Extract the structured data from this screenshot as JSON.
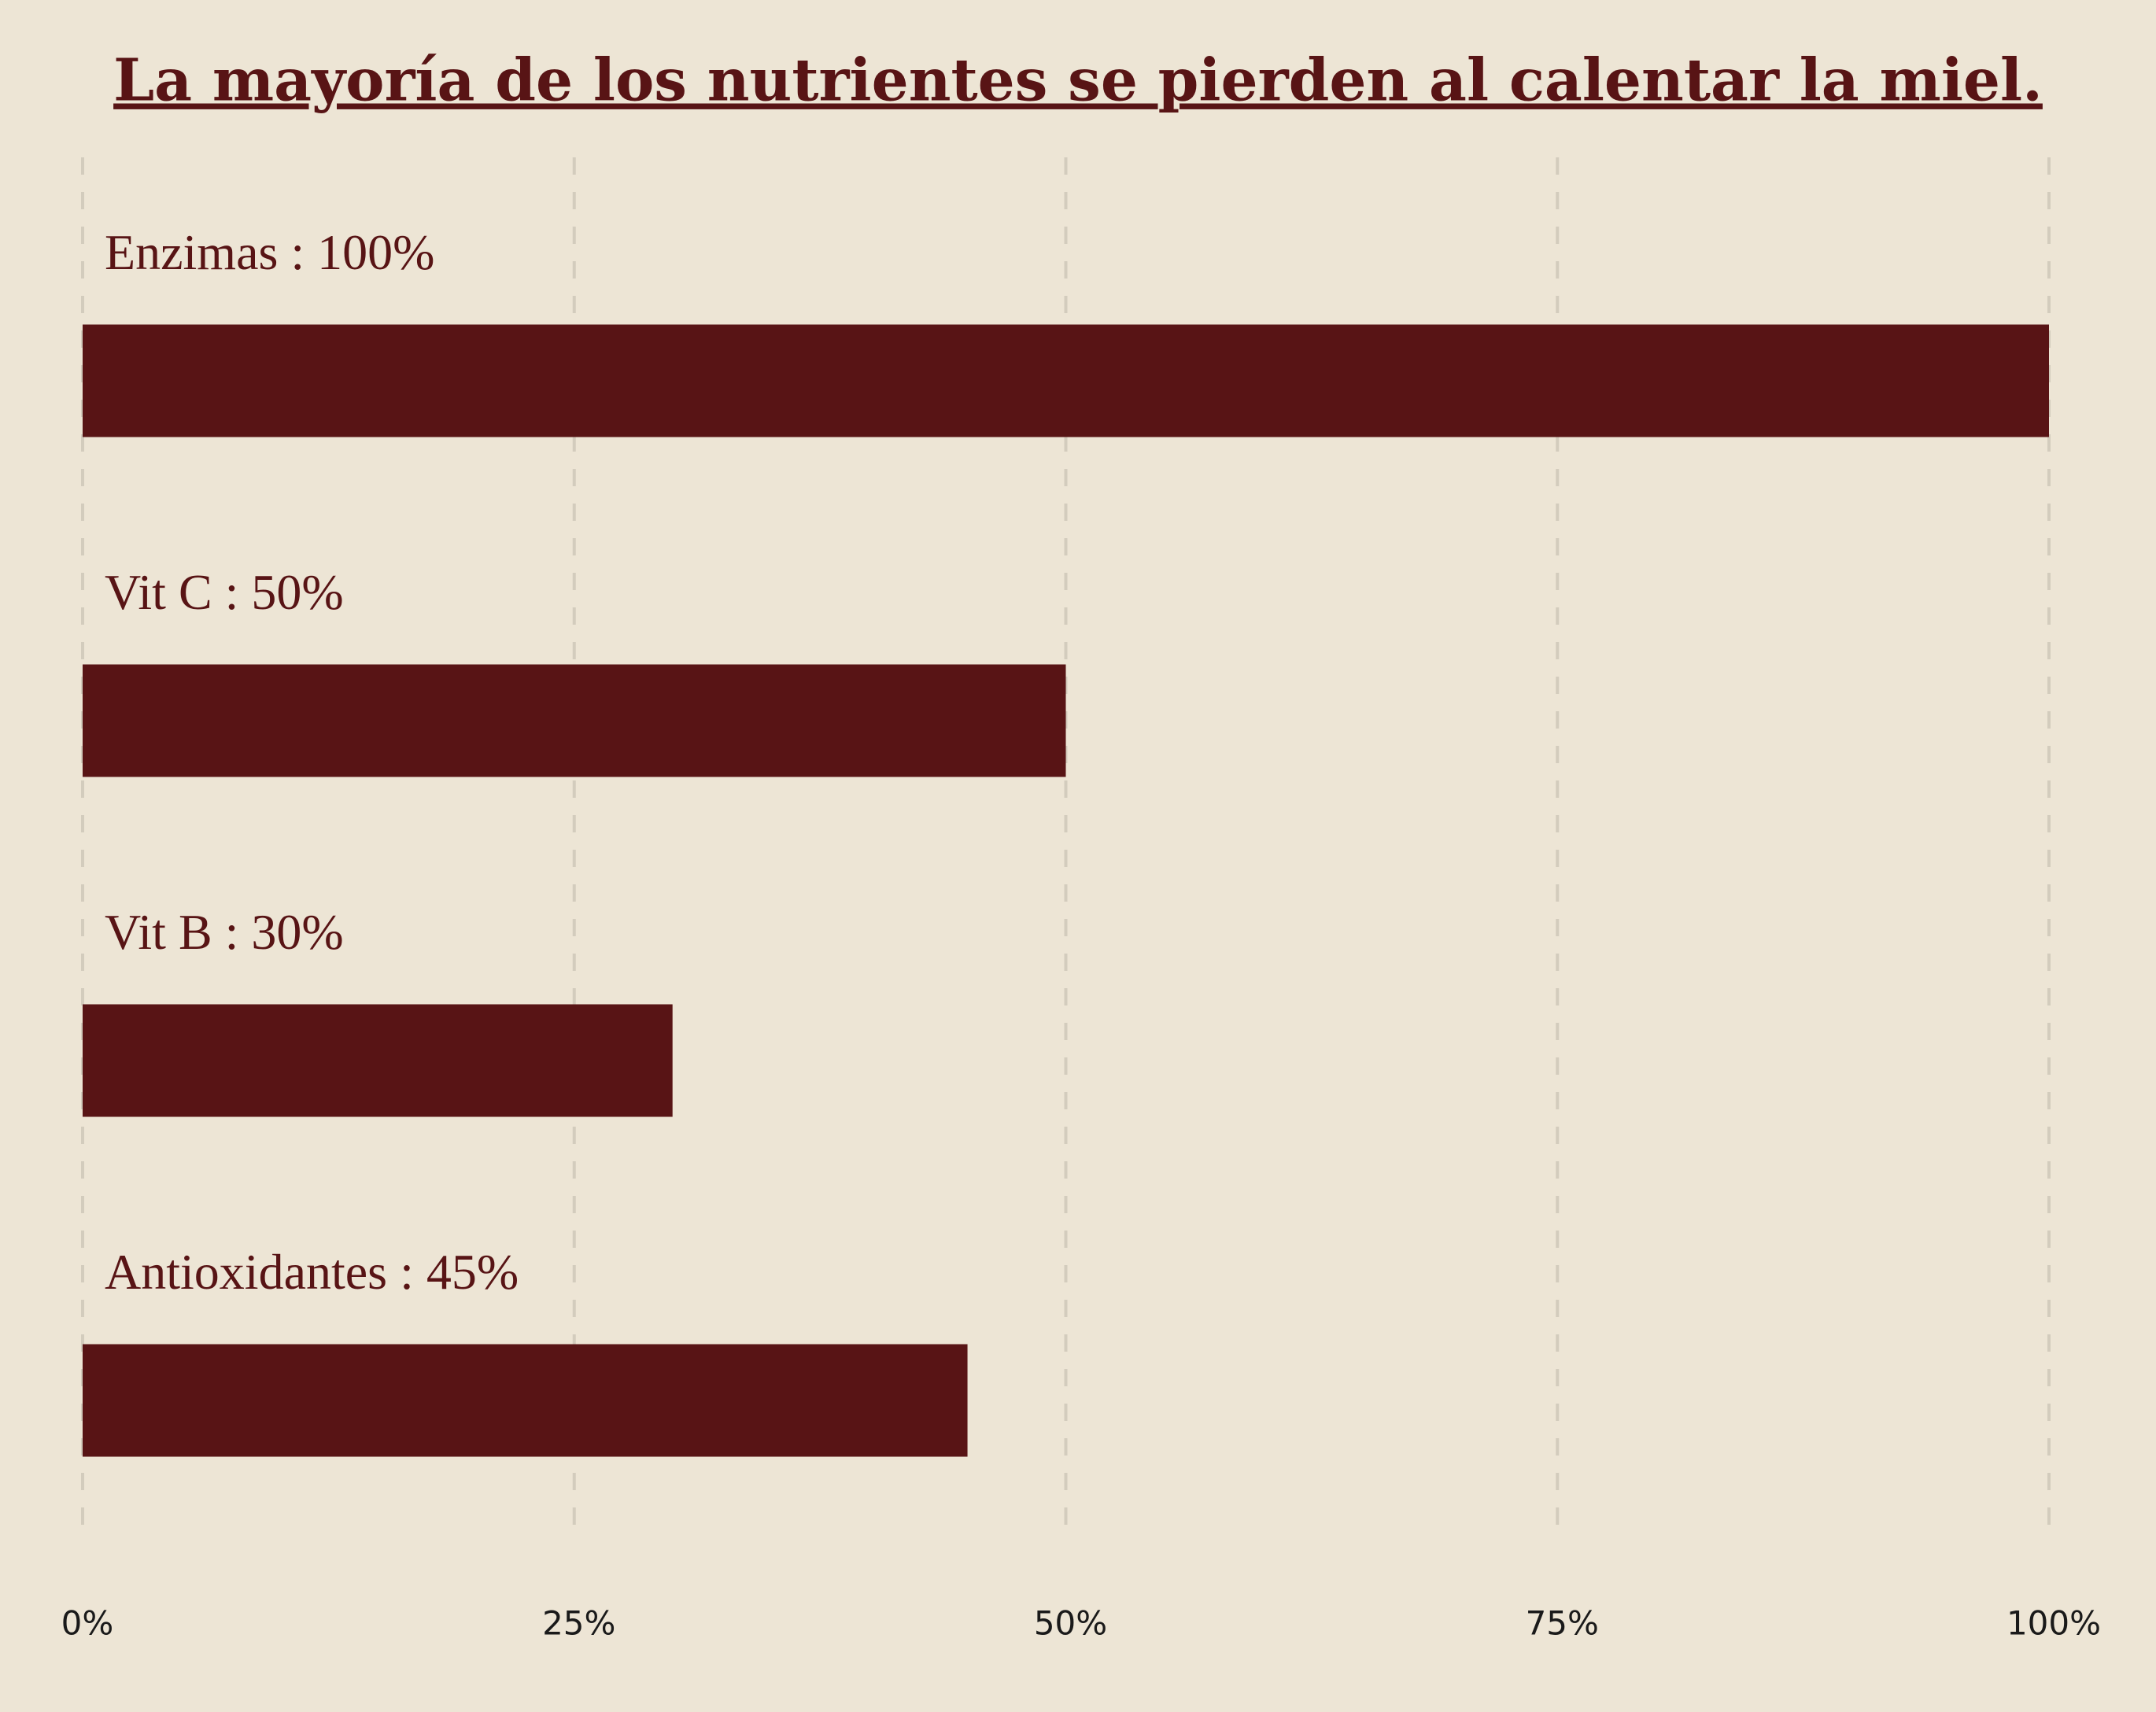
{
  "chart_data": {
    "type": "bar",
    "orientation": "horizontal",
    "title": "La mayoría de los nutrientes se pierden al calentar la miel.",
    "categories": [
      "Enzimas : 100%",
      "Vit C : 50%",
      "Vit B : 30%",
      "Antioxidantes : 45%"
    ],
    "values": [
      100,
      50,
      30,
      45
    ],
    "color": "#581415",
    "xlim": [
      0,
      100
    ],
    "xticks": [
      {
        "value": 0,
        "label": "0%"
      },
      {
        "value": 25,
        "label": "25%"
      },
      {
        "value": 50,
        "label": "50%"
      },
      {
        "value": 75,
        "label": "75%"
      },
      {
        "value": 100,
        "label": "100%"
      }
    ],
    "grid": true
  }
}
